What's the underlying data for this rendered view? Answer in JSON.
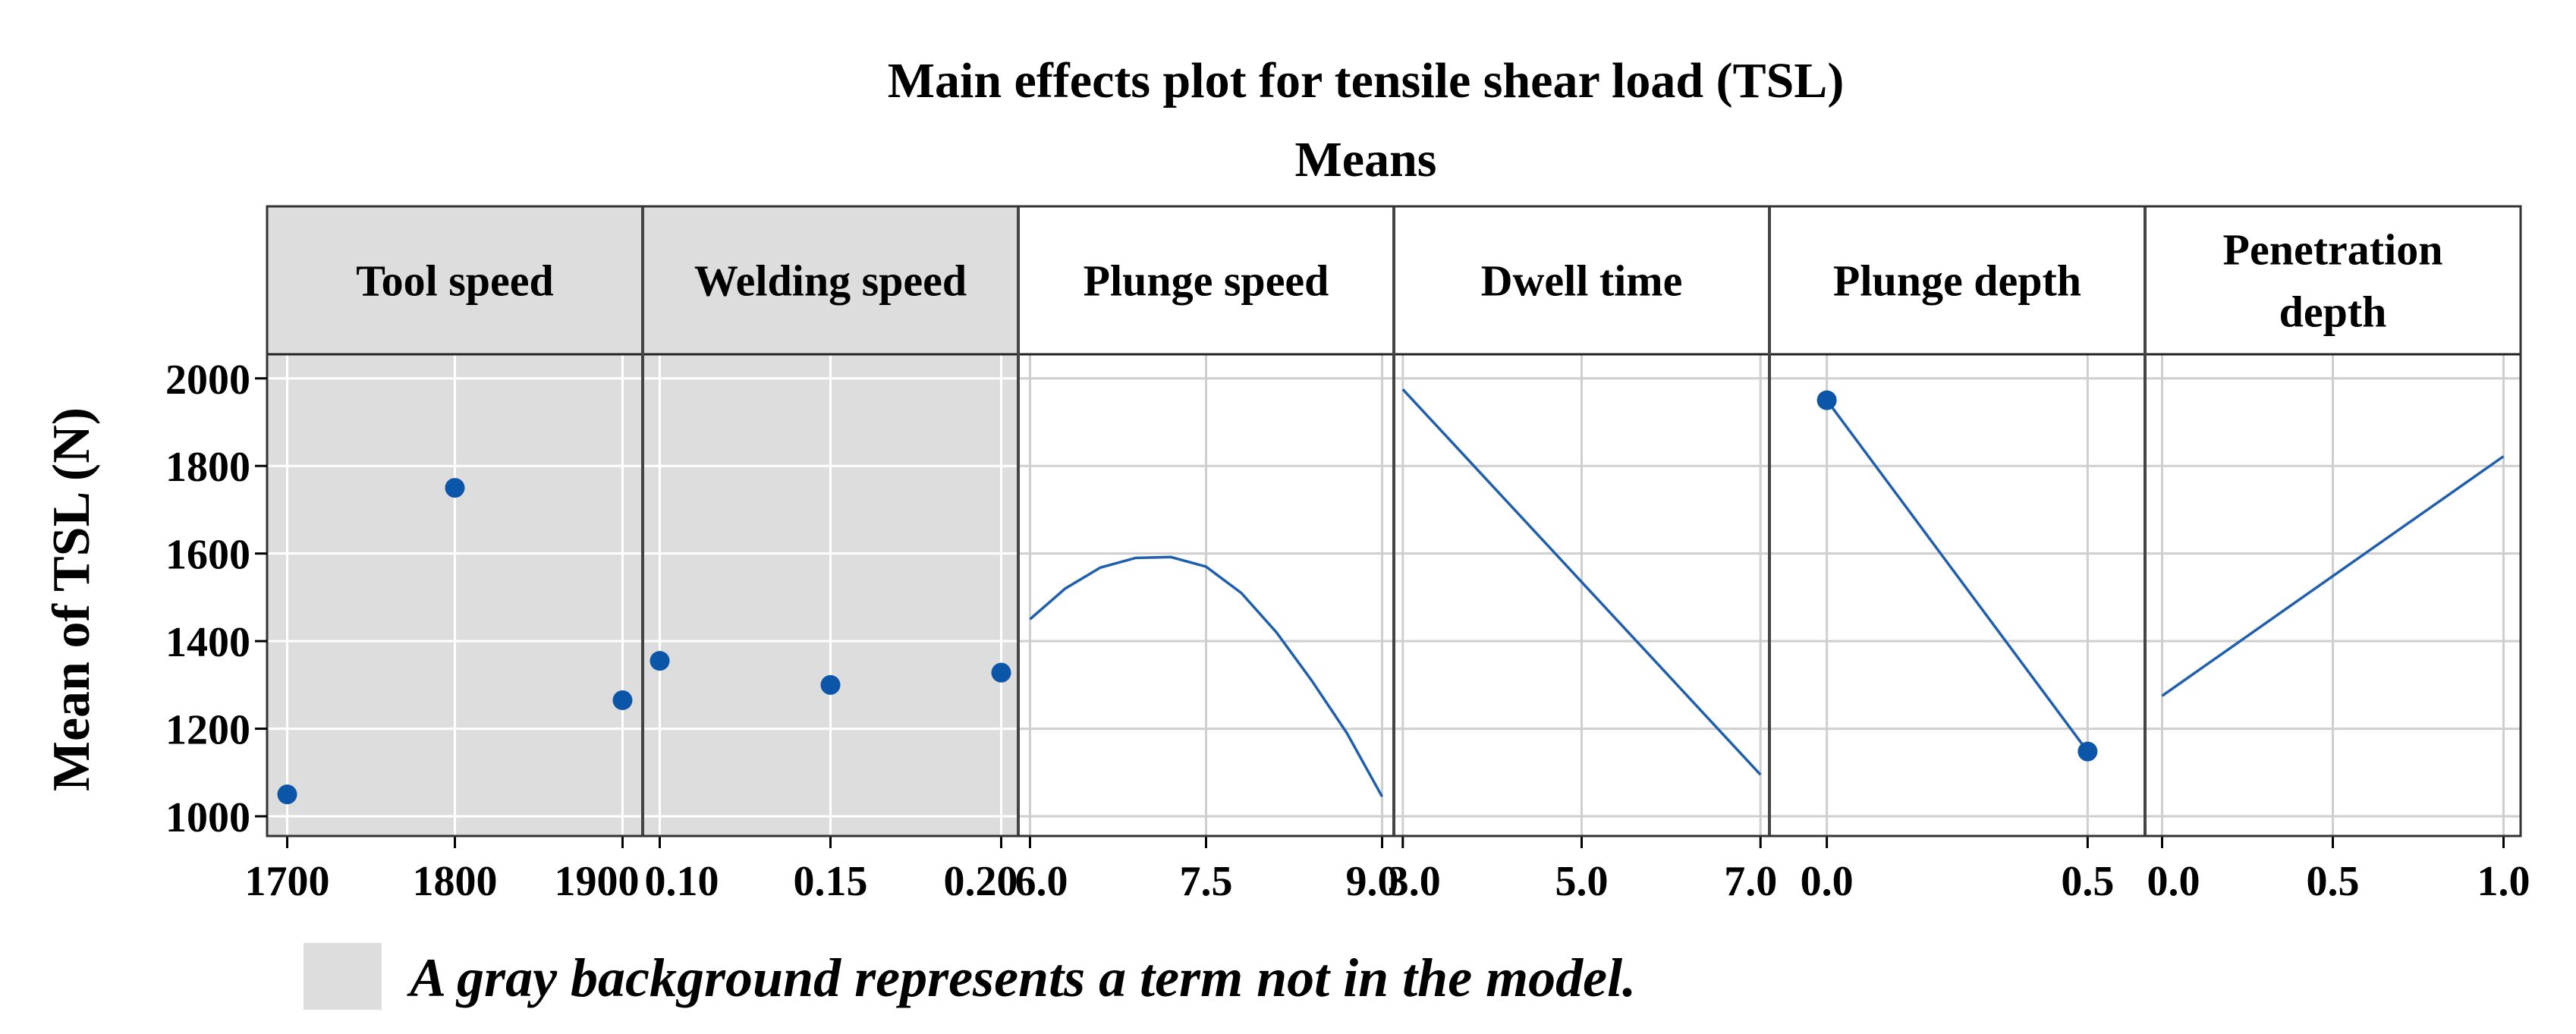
{
  "chart_data": {
    "type": "line",
    "title": "Main effects plot for tensile shear load (TSL)",
    "subtitle": "Means",
    "ylabel": "Mean of  TSL (N)",
    "ylim": [
      955,
      2055
    ],
    "yticks": [
      1000,
      1200,
      1400,
      1600,
      1800,
      2000
    ],
    "note": "A gray background represents a term not in the model.",
    "colors": {
      "series": "#1f5fad",
      "marker": "#0b56a8",
      "gray_bg": "#dddddd",
      "grid": "#cfcfcf"
    },
    "panels": [
      {
        "name": "Tool speed",
        "header_lines": [
          "Tool speed"
        ],
        "in_model": false,
        "style": "points",
        "xlim": [
          1688,
          1912
        ],
        "xticks": [
          1700,
          1800,
          1900
        ],
        "xtick_labels": [
          "1700",
          "1800",
          "1900"
        ],
        "x": [
          1700,
          1800,
          1900
        ],
        "y": [
          1050,
          1750,
          1265
        ]
      },
      {
        "name": "Welding speed",
        "header_lines": [
          "Welding speed"
        ],
        "in_model": false,
        "style": "points",
        "xlim": [
          0.095,
          0.205
        ],
        "xticks": [
          0.1,
          0.15,
          0.2
        ],
        "xtick_labels": [
          "0.10",
          "0.15",
          "0.20"
        ],
        "x": [
          0.1,
          0.15,
          0.2
        ],
        "y": [
          1355,
          1300,
          1328
        ]
      },
      {
        "name": "Plunge speed",
        "header_lines": [
          "Plunge speed"
        ],
        "in_model": true,
        "style": "line",
        "xlim": [
          5.9,
          9.1
        ],
        "xticks": [
          6.0,
          7.5,
          9.0
        ],
        "xtick_labels": [
          "6.0",
          "7.5",
          "9.0"
        ],
        "x": [
          6.0,
          6.3,
          6.6,
          6.9,
          7.2,
          7.5,
          7.8,
          8.1,
          8.4,
          8.7,
          9.0
        ],
        "y": [
          1450,
          1520,
          1568,
          1590,
          1592,
          1570,
          1510,
          1420,
          1310,
          1190,
          1045
        ]
      },
      {
        "name": "Dwell time",
        "header_lines": [
          "Dwell time"
        ],
        "in_model": true,
        "style": "line",
        "xlim": [
          2.9,
          7.1
        ],
        "xticks": [
          3.0,
          5.0,
          7.0
        ],
        "xtick_labels": [
          "3.0",
          "5.0",
          "7.0"
        ],
        "x": [
          3.0,
          7.0
        ],
        "y": [
          1975,
          1095
        ]
      },
      {
        "name": "Plunge depth",
        "header_lines": [
          "Plunge depth"
        ],
        "in_model": true,
        "style": "line-points",
        "xlim": [
          -0.11,
          0.61
        ],
        "xticks": [
          0.0,
          0.5
        ],
        "xtick_labels": [
          "0.0",
          "0.5"
        ],
        "x": [
          0.0,
          0.5
        ],
        "y": [
          1950,
          1148
        ]
      },
      {
        "name": "Penetration depth",
        "header_lines": [
          "Penetration",
          "depth"
        ],
        "in_model": true,
        "style": "line",
        "xlim": [
          -0.05,
          1.05
        ],
        "xticks": [
          0.0,
          0.5,
          1.0
        ],
        "xtick_labels": [
          "0.0",
          "0.5",
          "1.0"
        ],
        "x": [
          0.0,
          1.0
        ],
        "y": [
          1275,
          1822
        ]
      }
    ]
  }
}
